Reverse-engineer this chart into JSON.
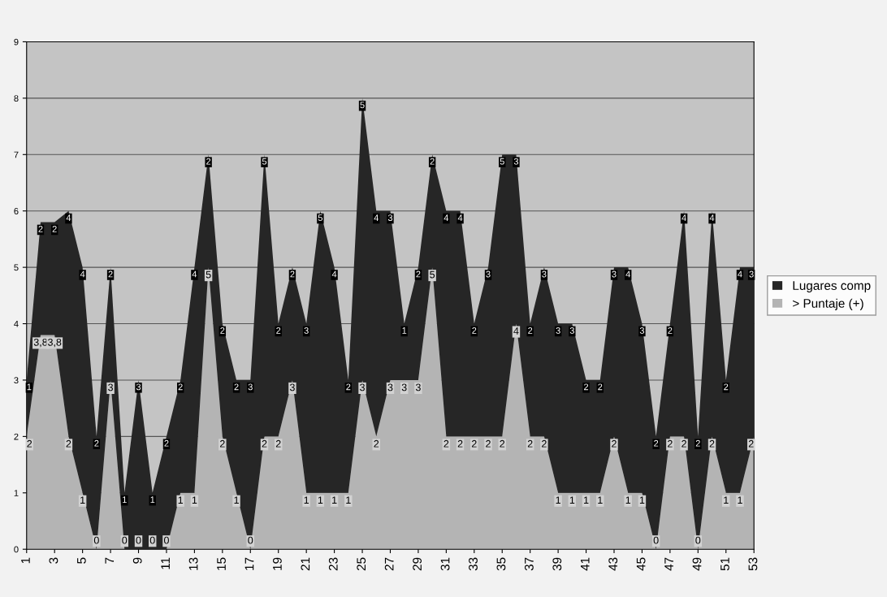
{
  "chart_data": {
    "type": "area",
    "stacked": true,
    "categories": [
      "1",
      null,
      "3",
      null,
      "5",
      null,
      "7",
      null,
      "9",
      null,
      "11",
      null,
      "13",
      null,
      "15",
      null,
      "17",
      null,
      "19",
      null,
      "21",
      null,
      "23",
      null,
      "25",
      null,
      "27",
      null,
      "29",
      null,
      "31",
      null,
      "33",
      null,
      "35",
      null,
      "37",
      null,
      "39",
      null,
      "41",
      null,
      "43",
      null,
      "45",
      null,
      "47",
      null,
      "49",
      null,
      "51",
      null,
      "53"
    ],
    "series": [
      {
        "name": "> Puntaje (+)",
        "color": "#b4b4b4",
        "values": [
          2,
          3.8,
          3.8,
          2,
          1,
          0,
          3,
          0,
          0,
          0,
          0,
          1,
          1,
          5,
          2,
          1,
          0,
          2,
          2,
          3,
          1,
          1,
          1,
          1,
          3,
          2,
          3,
          3,
          3,
          5,
          2,
          2,
          2,
          2,
          2,
          4,
          2,
          2,
          1,
          1,
          1,
          1,
          2,
          1,
          1,
          0,
          2,
          2,
          0,
          2,
          1,
          1,
          2
        ],
        "value_labels": [
          "2",
          "3,8",
          "3,8",
          "2",
          "1",
          "0",
          "3",
          "0",
          "0",
          "0",
          "0",
          "1",
          "1",
          "5",
          "2",
          "1",
          "0",
          "2",
          "2",
          "3",
          "1",
          "1",
          "1",
          "1",
          "3",
          "2",
          "3",
          "3",
          "3",
          "5",
          "2",
          "2",
          "2",
          "2",
          "2",
          "4",
          "2",
          "2",
          "1",
          "1",
          "1",
          "1",
          "2",
          "1",
          "1",
          "0",
          "2",
          "2",
          "0",
          "2",
          "1",
          "1",
          "2"
        ]
      },
      {
        "name": "Lugares comp",
        "color": "#262626",
        "values": [
          1,
          2,
          2,
          4,
          4,
          2,
          2,
          1,
          3,
          1,
          2,
          2,
          4,
          2,
          2,
          2,
          3,
          5,
          2,
          2,
          3,
          5,
          4,
          2,
          5,
          4,
          3,
          1,
          2,
          2,
          4,
          4,
          2,
          3,
          5,
          3,
          2,
          3,
          3,
          3,
          2,
          2,
          3,
          4,
          3,
          2,
          2,
          4,
          2,
          4,
          2,
          4,
          3
        ],
        "value_labels": [
          "1",
          "2",
          "2",
          "4",
          "4",
          "2",
          "2",
          "1",
          "3",
          "1",
          "2",
          "2",
          "4",
          "2",
          "2",
          "2",
          "3",
          "5",
          "2",
          "2",
          "3",
          "5",
          "4",
          "2",
          "5",
          "4",
          "3",
          "1",
          "2",
          "2",
          "4",
          "4",
          "2",
          "3",
          "5",
          "3",
          "2",
          "3",
          "3",
          "3",
          "2",
          "2",
          "3",
          "4",
          "3",
          "2",
          "2",
          "4",
          "2",
          "4",
          "2",
          "4",
          "3"
        ]
      }
    ],
    "ylim": [
      0,
      9
    ],
    "yticks": [
      0,
      1,
      2,
      3,
      4,
      5,
      6,
      7,
      8,
      9
    ],
    "grid": "y",
    "legend": "right"
  }
}
